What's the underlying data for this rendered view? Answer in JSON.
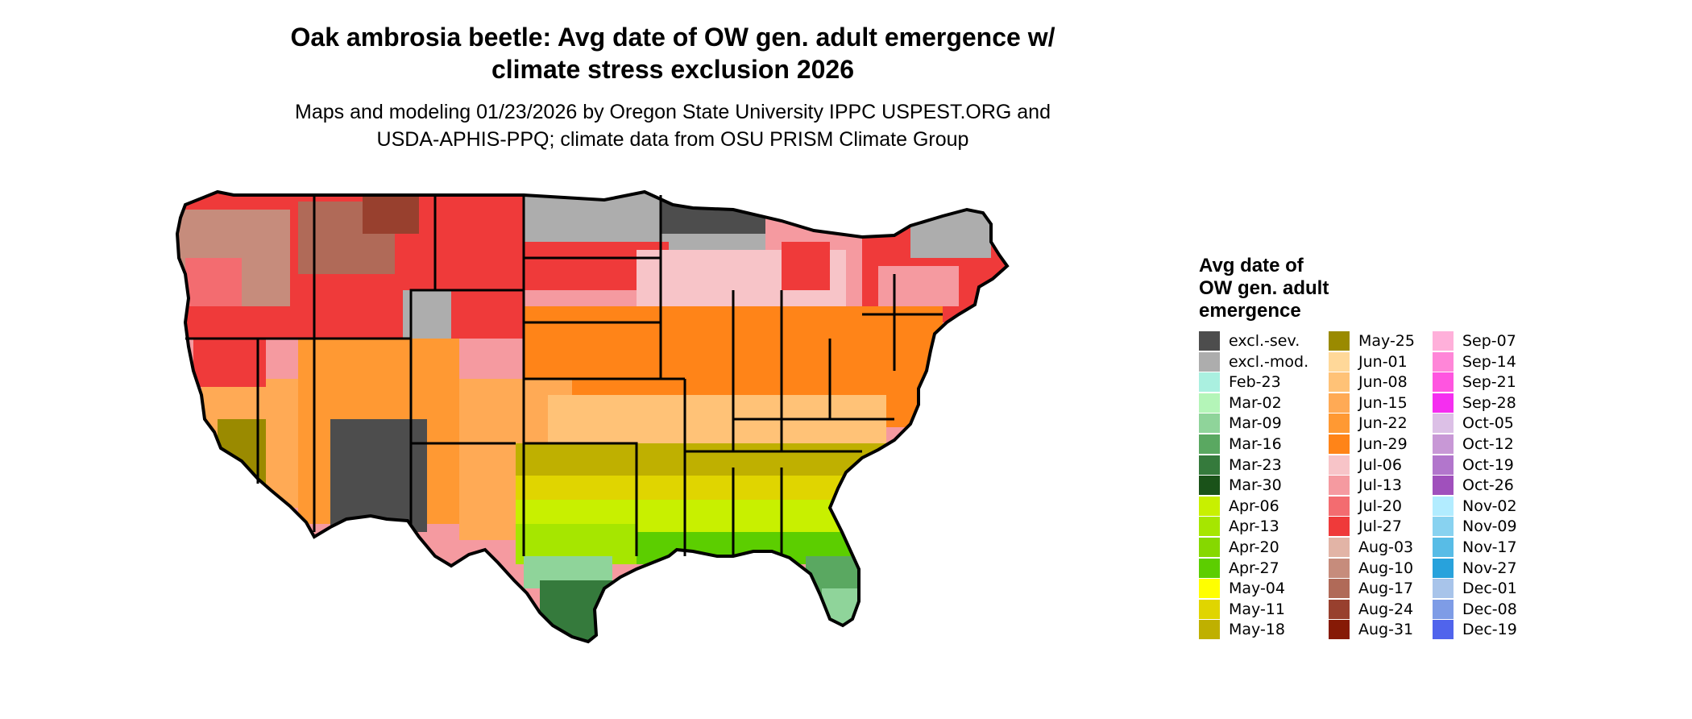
{
  "title_line1": "Oak ambrosia beetle: Avg date of OW gen. adult emergence w/",
  "title_line2": "climate stress exclusion 2026",
  "subtitle_line1": "Maps and modeling 01/23/2026 by Oregon State University IPPC USPEST.ORG and",
  "subtitle_line2": "USDA-APHIS-PPQ; climate data from OSU PRISM Climate Group",
  "legend": {
    "title_line1": "Avg date of",
    "title_line2": "OW gen. adult",
    "title_line3": "emergence",
    "items": [
      {
        "label": "excl.-sev.",
        "color": "#4d4d4d"
      },
      {
        "label": "excl.-mod.",
        "color": "#adadad"
      },
      {
        "label": "Feb-23",
        "color": "#aaf0e0"
      },
      {
        "label": "Mar-02",
        "color": "#b4f5b8"
      },
      {
        "label": "Mar-09",
        "color": "#8fd49a"
      },
      {
        "label": "Mar-16",
        "color": "#5aa861"
      },
      {
        "label": "Mar-23",
        "color": "#357a3c"
      },
      {
        "label": "Mar-30",
        "color": "#1a5219"
      },
      {
        "label": "Apr-06",
        "color": "#c8f000"
      },
      {
        "label": "Apr-13",
        "color": "#a6e600"
      },
      {
        "label": "Apr-20",
        "color": "#86d800"
      },
      {
        "label": "Apr-27",
        "color": "#5cce00"
      },
      {
        "label": "May-04",
        "color": "#ffff00"
      },
      {
        "label": "May-11",
        "color": "#e0d500"
      },
      {
        "label": "May-18",
        "color": "#bfb000"
      },
      {
        "label": "May-25",
        "color": "#9a8a00"
      },
      {
        "label": "Jun-01",
        "color": "#ffd899"
      },
      {
        "label": "Jun-08",
        "color": "#ffc277"
      },
      {
        "label": "Jun-15",
        "color": "#ffaa55"
      },
      {
        "label": "Jun-22",
        "color": "#ff9933"
      },
      {
        "label": "Jun-29",
        "color": "#ff8418"
      },
      {
        "label": "Jul-06",
        "color": "#f7c4c8"
      },
      {
        "label": "Jul-13",
        "color": "#f59aa0"
      },
      {
        "label": "Jul-20",
        "color": "#f36c70"
      },
      {
        "label": "Jul-27",
        "color": "#ef3a3a"
      },
      {
        "label": "Aug-03",
        "color": "#e2b4a6"
      },
      {
        "label": "Aug-10",
        "color": "#c68c7c"
      },
      {
        "label": "Aug-17",
        "color": "#b06a58"
      },
      {
        "label": "Aug-24",
        "color": "#98402e"
      },
      {
        "label": "Aug-31",
        "color": "#861a06"
      },
      {
        "label": "Sep-07",
        "color": "#ffb0da"
      },
      {
        "label": "Sep-14",
        "color": "#ff86d8"
      },
      {
        "label": "Sep-21",
        "color": "#ff55e0"
      },
      {
        "label": "Sep-28",
        "color": "#f52ef0"
      },
      {
        "label": "Oct-05",
        "color": "#dcc0e6"
      },
      {
        "label": "Oct-12",
        "color": "#c898d6"
      },
      {
        "label": "Oct-19",
        "color": "#b276cc"
      },
      {
        "label": "Oct-26",
        "color": "#a050bc"
      },
      {
        "label": "Nov-02",
        "color": "#b2ecff"
      },
      {
        "label": "Nov-09",
        "color": "#88d2f0"
      },
      {
        "label": "Nov-17",
        "color": "#58bce6"
      },
      {
        "label": "Nov-27",
        "color": "#28a2dc"
      },
      {
        "label": "Dec-01",
        "color": "#a8c4ea"
      },
      {
        "label": "Dec-08",
        "color": "#7e9ce6"
      },
      {
        "label": "Dec-19",
        "color": "#5064ec"
      }
    ]
  }
}
